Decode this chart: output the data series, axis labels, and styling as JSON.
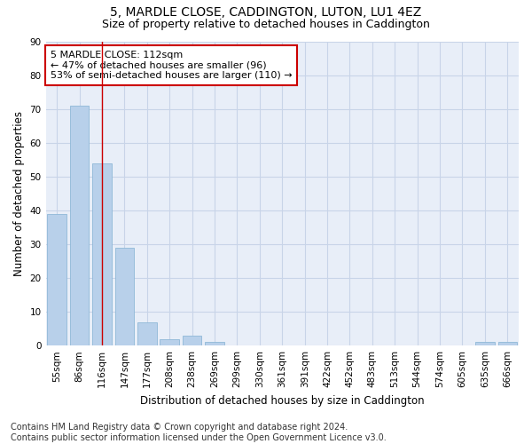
{
  "title": "5, MARDLE CLOSE, CADDINGTON, LUTON, LU1 4EZ",
  "subtitle": "Size of property relative to detached houses in Caddington",
  "xlabel": "Distribution of detached houses by size in Caddington",
  "ylabel": "Number of detached properties",
  "categories": [
    "55sqm",
    "86sqm",
    "116sqm",
    "147sqm",
    "177sqm",
    "208sqm",
    "238sqm",
    "269sqm",
    "299sqm",
    "330sqm",
    "361sqm",
    "391sqm",
    "422sqm",
    "452sqm",
    "483sqm",
    "513sqm",
    "544sqm",
    "574sqm",
    "605sqm",
    "635sqm",
    "666sqm"
  ],
  "values": [
    39,
    71,
    54,
    29,
    7,
    2,
    3,
    1,
    0,
    0,
    0,
    0,
    0,
    0,
    0,
    0,
    0,
    0,
    0,
    1,
    1
  ],
  "bar_color": "#b8d0ea",
  "bar_edge_color": "#8fb8d8",
  "vline_x": 2,
  "vline_color": "#cc0000",
  "annotation_text": "5 MARDLE CLOSE: 112sqm\n← 47% of detached houses are smaller (96)\n53% of semi-detached houses are larger (110) →",
  "annotation_box_color": "#ffffff",
  "annotation_box_edge": "#cc0000",
  "ylim": [
    0,
    90
  ],
  "yticks": [
    0,
    10,
    20,
    30,
    40,
    50,
    60,
    70,
    80,
    90
  ],
  "background_color": "#ffffff",
  "plot_bg_color": "#e8eef8",
  "grid_color": "#c8d4e8",
  "footer": "Contains HM Land Registry data © Crown copyright and database right 2024.\nContains public sector information licensed under the Open Government Licence v3.0.",
  "title_fontsize": 10,
  "subtitle_fontsize": 9,
  "axis_label_fontsize": 8.5,
  "tick_fontsize": 7.5,
  "annotation_fontsize": 8,
  "footer_fontsize": 7
}
